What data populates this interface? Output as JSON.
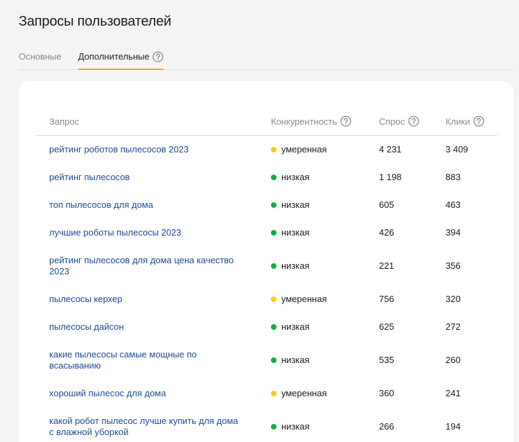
{
  "header": {
    "title": "Запросы пользователей"
  },
  "tabs": [
    {
      "label": "Основные",
      "active": false
    },
    {
      "label": "Дополнительные",
      "active": true,
      "help": true
    }
  ],
  "table": {
    "columns": [
      {
        "label": "Запрос",
        "help": false
      },
      {
        "label": "Конкурентность",
        "help": true
      },
      {
        "label": "Спрос",
        "help": true
      },
      {
        "label": "Клики",
        "help": true
      }
    ],
    "rows": [
      {
        "query": "рейтинг роботов пылесосов 2023",
        "competition": "умеренная",
        "color": "#fdcb00",
        "demand": "4 231",
        "clicks": "3 409"
      },
      {
        "query": "рейтинг пылесосов",
        "competition": "низкая",
        "color": "#00b341",
        "demand": "1 198",
        "clicks": "883"
      },
      {
        "query": "топ пылесосов для дома",
        "competition": "низкая",
        "color": "#00b341",
        "demand": "605",
        "clicks": "463"
      },
      {
        "query": "лучшие роботы пылесосы 2023",
        "competition": "низкая",
        "color": "#00b341",
        "demand": "426",
        "clicks": "394"
      },
      {
        "query": "рейтинг пылесосов для дома цена качество 2023",
        "competition": "низкая",
        "color": "#00b341",
        "demand": "221",
        "clicks": "356"
      },
      {
        "query": "пылесосы керхер",
        "competition": "умеренная",
        "color": "#fdcb00",
        "demand": "756",
        "clicks": "320"
      },
      {
        "query": "пылесосы дайсон",
        "competition": "низкая",
        "color": "#00b341",
        "demand": "625",
        "clicks": "272"
      },
      {
        "query": "какие пылесосы самые мощные по всасыванию",
        "competition": "низкая",
        "color": "#00b341",
        "demand": "535",
        "clicks": "260"
      },
      {
        "query": "хороший пылесос для дома",
        "competition": "умеренная",
        "color": "#fdcb00",
        "demand": "360",
        "clicks": "241"
      },
      {
        "query": "какой робот пылесос лучше купить для дома с влажной уборкой",
        "competition": "низкая",
        "color": "#00b341",
        "demand": "266",
        "clicks": "194"
      }
    ]
  }
}
